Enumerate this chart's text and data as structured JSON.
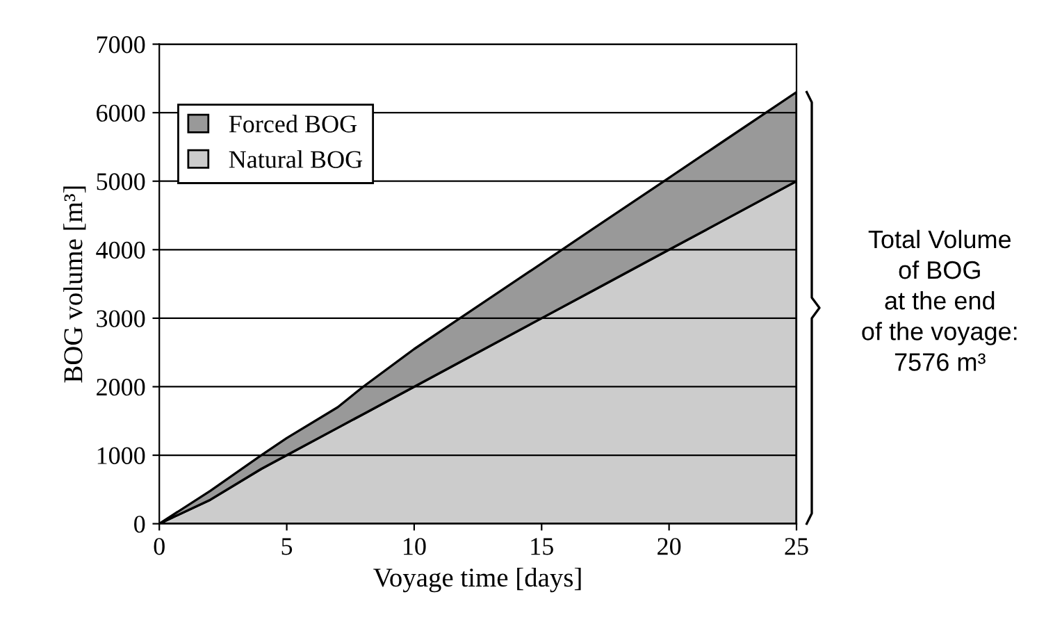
{
  "chart_data": {
    "type": "area",
    "stacked": true,
    "xlabel": "Voyage time [days]",
    "ylabel": "BOG volume [m³]",
    "x": [
      0,
      2,
      4,
      5,
      7,
      8,
      10,
      12,
      15,
      17,
      20,
      22,
      25
    ],
    "series": [
      {
        "name": "Natural BOG",
        "color": "#cccccc",
        "values": [
          0,
          350,
          800,
          1000,
          1400,
          1600,
          2000,
          2400,
          3000,
          3400,
          4000,
          4400,
          5000
        ]
      },
      {
        "name": "Forced BOG",
        "color": "#999999",
        "values": [
          0,
          130,
          200,
          250,
          300,
          400,
          550,
          650,
          800,
          900,
          1050,
          1150,
          1300
        ]
      }
    ],
    "xlim": [
      0,
      25
    ],
    "xticks": [
      0,
      5,
      10,
      15,
      20,
      25
    ],
    "ylim": [
      0,
      7000
    ],
    "yticks": [
      0,
      1000,
      2000,
      3000,
      4000,
      5000,
      6000,
      7000
    ],
    "grid": "y",
    "legend": "top left",
    "annotations": [
      "Total Volume\nof BOG\nat the end\nof the voyage:\n7576 m³"
    ]
  }
}
